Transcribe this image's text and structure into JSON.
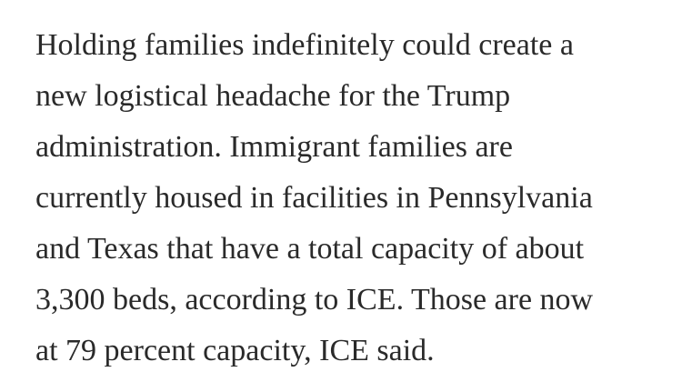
{
  "article": {
    "paragraph_lines": [
      "Holding families indefinitely could create a",
      "new logistical headache for the Trump",
      "administration. Immigrant families are",
      "currently housed in facilities in Pennsylvania",
      "and Texas that have a total capacity of about",
      "3,300 beds, according to ICE. Those are now",
      "at 79 percent capacity, ICE said."
    ]
  },
  "colors": {
    "text": "#2a2a2a",
    "background": "#ffffff"
  }
}
